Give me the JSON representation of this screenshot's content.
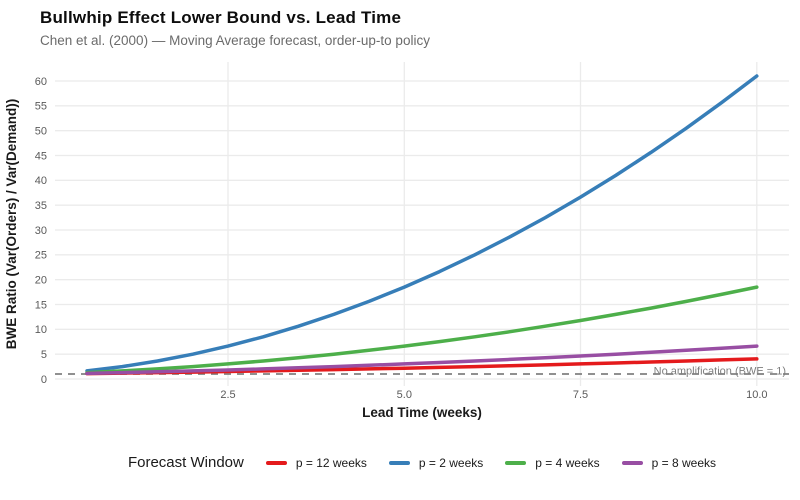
{
  "chart_data": {
    "type": "line",
    "title": "Bullwhip Effect Lower Bound vs. Lead Time",
    "subtitle": "Chen et al. (2000) — Moving Average forecast, order-up-to policy",
    "xlabel": "Lead Time (weeks)",
    "ylabel": "BWE Ratio (Var(Orders) / Var(Demand))",
    "x_axis": {
      "range": [
        0.5,
        10
      ],
      "tick_values": [
        2.5,
        5,
        7.5,
        10
      ],
      "tick_labels": [
        "2.5",
        "5.0",
        "7.5",
        "10.0"
      ]
    },
    "y_axis": {
      "range": [
        0,
        62
      ],
      "tick_values": [
        0,
        5,
        10,
        15,
        20,
        25,
        30,
        35,
        40,
        45,
        50,
        55,
        60
      ],
      "tick_labels": [
        "0",
        "5",
        "10",
        "15",
        "20",
        "25",
        "30",
        "35",
        "40",
        "45",
        "50",
        "55",
        "60"
      ]
    },
    "grid": "major-only",
    "legend": {
      "title": "Forecast Window",
      "position": "bottom"
    },
    "x": [
      0.5,
      1,
      1.5,
      2,
      2.5,
      3,
      3.5,
      4,
      4.5,
      5,
      5.5,
      6,
      6.5,
      7,
      7.5,
      8,
      8.5,
      9,
      9.5,
      10
    ],
    "series": [
      {
        "name": "p = 12 weeks",
        "color": "#E41A1C",
        "values": [
          1.087,
          1.181,
          1.281,
          1.389,
          1.503,
          1.625,
          1.753,
          1.889,
          2.031,
          2.181,
          2.337,
          2.5,
          2.67,
          2.847,
          3.031,
          3.222,
          3.42,
          3.625,
          3.837,
          4.056
        ]
      },
      {
        "name": "p = 2 weeks",
        "color": "#377EB8",
        "values": [
          1.625,
          2.5,
          3.625,
          5,
          6.625,
          8.5,
          10.625,
          13,
          15.625,
          18.5,
          21.625,
          25,
          28.625,
          32.5,
          36.625,
          41,
          45.625,
          50.5,
          55.625,
          61
        ]
      },
      {
        "name": "p = 4 weeks",
        "color": "#4DAF4A",
        "values": [
          1.281,
          1.625,
          2.031,
          2.5,
          3.031,
          3.625,
          4.281,
          5,
          5.781,
          6.625,
          7.531,
          8.5,
          9.531,
          10.625,
          11.781,
          13,
          14.281,
          15.625,
          17.031,
          18.5
        ]
      },
      {
        "name": "p = 8 weeks",
        "color": "#984EA3",
        "values": [
          1.133,
          1.281,
          1.445,
          1.625,
          1.82,
          2.031,
          2.258,
          2.5,
          2.758,
          3.031,
          3.32,
          3.625,
          3.945,
          4.281,
          4.633,
          5,
          5.383,
          5.781,
          6.195,
          6.625
        ]
      }
    ],
    "reference_line": {
      "y": 1,
      "label": "No amplification (BWE = 1)",
      "color": "#808080",
      "style": "dashed"
    }
  },
  "colors": {
    "grid": "#EBEBEB",
    "axis_text": "#5a5a5a",
    "subtitle": "#6b6b6b",
    "annotation": "#7e7e7e"
  }
}
